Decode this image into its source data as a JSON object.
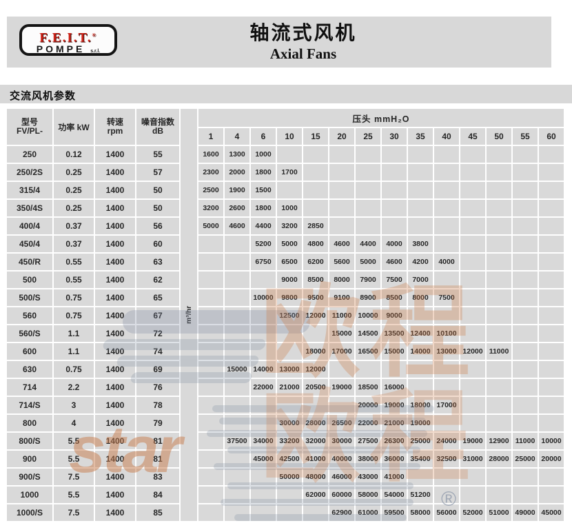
{
  "banner": {
    "logo_line1": "F.E.I.T.",
    "logo_reg": "®",
    "logo_line2": "POMPE",
    "logo_suffix": "s.r.l.",
    "title_zh": "轴流式风机",
    "title_en": "Axial Fans"
  },
  "section_title": "交流风机参数",
  "table": {
    "col_headers": {
      "model_zh": "型号",
      "model_sub": "FV/PL-",
      "power": "功率 kW",
      "speed_zh": "转速",
      "speed_sub": "rpm",
      "noise_zh": "噪音指数",
      "noise_sub": "dB",
      "flow_unit": "m³/hr",
      "pressure_header": "压头 mmH₂O"
    },
    "pressure_columns": [
      "1",
      "4",
      "6",
      "10",
      "15",
      "20",
      "25",
      "30",
      "35",
      "40",
      "45",
      "50",
      "55",
      "60"
    ],
    "rows": [
      {
        "model": "250",
        "power": "0.12",
        "rpm": "1400",
        "db": "55",
        "start": 0,
        "flows": [
          "1600",
          "1300",
          "1000"
        ]
      },
      {
        "model": "250/2S",
        "power": "0.25",
        "rpm": "1400",
        "db": "57",
        "start": 0,
        "flows": [
          "2300",
          "2000",
          "1800",
          "1700"
        ]
      },
      {
        "model": "315/4",
        "power": "0.25",
        "rpm": "1400",
        "db": "50",
        "start": 0,
        "flows": [
          "2500",
          "1900",
          "1500"
        ]
      },
      {
        "model": "350/4S",
        "power": "0.25",
        "rpm": "1400",
        "db": "50",
        "start": 0,
        "flows": [
          "3200",
          "2600",
          "1800",
          "1000"
        ]
      },
      {
        "model": "400/4",
        "power": "0.37",
        "rpm": "1400",
        "db": "56",
        "start": 0,
        "flows": [
          "5000",
          "4600",
          "4400",
          "3200",
          "2850"
        ]
      },
      {
        "model": "450/4",
        "power": "0.37",
        "rpm": "1400",
        "db": "60",
        "start": 2,
        "flows": [
          "5200",
          "5000",
          "4800",
          "4600",
          "4400",
          "4000",
          "3800"
        ]
      },
      {
        "model": "450/R",
        "power": "0.55",
        "rpm": "1400",
        "db": "63",
        "start": 2,
        "flows": [
          "6750",
          "6500",
          "6200",
          "5600",
          "5000",
          "4600",
          "4200",
          "4000"
        ]
      },
      {
        "model": "500",
        "power": "0.55",
        "rpm": "1400",
        "db": "62",
        "start": 3,
        "flows": [
          "9000",
          "8500",
          "8000",
          "7900",
          "7500",
          "7000"
        ]
      },
      {
        "model": "500/S",
        "power": "0.75",
        "rpm": "1400",
        "db": "65",
        "start": 2,
        "flows": [
          "10000",
          "9800",
          "9500",
          "9100",
          "8900",
          "8500",
          "8000",
          "7500"
        ]
      },
      {
        "model": "560",
        "power": "0.75",
        "rpm": "1400",
        "db": "67",
        "start": 3,
        "flows": [
          "12500",
          "12000",
          "11000",
          "10000",
          "9000"
        ]
      },
      {
        "model": "560/S",
        "power": "1.1",
        "rpm": "1400",
        "db": "72",
        "start": 5,
        "flows": [
          "15000",
          "14500",
          "13500",
          "12400",
          "10100"
        ]
      },
      {
        "model": "600",
        "power": "1.1",
        "rpm": "1400",
        "db": "74",
        "start": 4,
        "flows": [
          "18000",
          "17000",
          "16500",
          "15000",
          "14000",
          "13000",
          "12000",
          "11000"
        ]
      },
      {
        "model": "630",
        "power": "0.75",
        "rpm": "1400",
        "db": "69",
        "start": 1,
        "flows": [
          "15000",
          "14000",
          "13000",
          "12000"
        ]
      },
      {
        "model": "714",
        "power": "2.2",
        "rpm": "1400",
        "db": "76",
        "start": 2,
        "flows": [
          "22000",
          "21000",
          "20500",
          "19000",
          "18500",
          "16000"
        ]
      },
      {
        "model": "714/S",
        "power": "3",
        "rpm": "1400",
        "db": "78",
        "start": 6,
        "flows": [
          "20000",
          "19000",
          "18000",
          "17000"
        ]
      },
      {
        "model": "800",
        "power": "4",
        "rpm": "1400",
        "db": "79",
        "start": 3,
        "flows": [
          "30000",
          "28000",
          "26500",
          "22000",
          "21000",
          "19000"
        ]
      },
      {
        "model": "800/S",
        "power": "5.5",
        "rpm": "1400",
        "db": "81",
        "start": 1,
        "flows": [
          "37500",
          "34000",
          "33200",
          "32000",
          "30000",
          "27500",
          "26300",
          "25000",
          "24000",
          "19000",
          "12900",
          "11000",
          "10000"
        ]
      },
      {
        "model": "900",
        "power": "5.5",
        "rpm": "1400",
        "db": "81",
        "start": 2,
        "flows": [
          "45000",
          "42500",
          "41000",
          "40000",
          "38000",
          "36000",
          "35400",
          "32500",
          "31000",
          "28000",
          "25000",
          "20000"
        ]
      },
      {
        "model": "900/S",
        "power": "7.5",
        "rpm": "1400",
        "db": "83",
        "start": 3,
        "flows": [
          "50000",
          "48000",
          "46000",
          "43000",
          "41000"
        ]
      },
      {
        "model": "1000",
        "power": "5.5",
        "rpm": "1400",
        "db": "84",
        "start": 4,
        "flows": [
          "62000",
          "60000",
          "58000",
          "54000",
          "51200"
        ]
      },
      {
        "model": "1000/S",
        "power": "7.5",
        "rpm": "1400",
        "db": "85",
        "start": 5,
        "flows": [
          "62900",
          "61000",
          "59500",
          "58000",
          "56000",
          "52000",
          "51000",
          "49000",
          "45000"
        ]
      }
    ]
  },
  "watermark": {
    "text": "star",
    "cjk_row1": "欧程",
    "cjk_row2": "欧程",
    "reg": "®",
    "orange": "#cf7a45",
    "gray": "#7d8aa0"
  },
  "colors": {
    "banner_gray": "#d8d8d8",
    "cell_gray": "#d9d9d9",
    "logo_red": "#cf2218",
    "text_dark": "#262626"
  }
}
